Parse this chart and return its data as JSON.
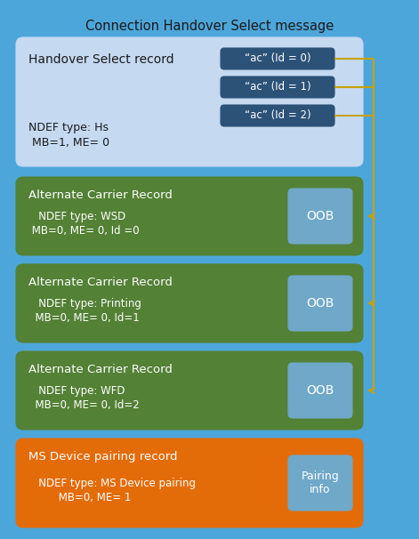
{
  "title": "Connection Handover Select message",
  "bg_outer": "#4da6d9",
  "bg_handover": "#c5d9f1",
  "bg_alt_carrier": "#538135",
  "bg_ms": "#e36c09",
  "bg_ac_label": "#2d5278",
  "bg_oob": "#6fa8c9",
  "bg_pairing": "#6fa8c9",
  "text_white": "#ffffff",
  "text_dark": "#1a1a1a",
  "arrow_color": "#c8a000",
  "title_text": "Connection Handover Select message",
  "handover_title": "Handover Select record",
  "handover_sub1": "NDEF type: Hs",
  "handover_sub2": " MB=1, ME= 0",
  "ac_labels": [
    "“ac” (Id = 0)",
    "“ac” (Id = 1)",
    "“ac” (Id = 2)"
  ],
  "carrier_records": [
    {
      "title": "Alternate Carrier Record",
      "line1": "   NDEF type: WSD",
      "line2": " MB=0, ME= 0, Id =0",
      "oob": "OOB"
    },
    {
      "title": "Alternate Carrier Record",
      "line1": "   NDEF type: Printing",
      "line2": "  MB=0, ME= 0, Id=1",
      "oob": "OOB"
    },
    {
      "title": "Alternate Carrier Record",
      "line1": "   NDEF type: WFD",
      "line2": "  MB=0, ME= 0, Id=2",
      "oob": "OOB"
    }
  ],
  "ms_record": {
    "title": "MS Device pairing record",
    "line1": "   NDEF type: MS Device pairing",
    "line2": "         MB=0, ME= 1",
    "box_label": "Pairing\ninfo"
  },
  "figw": 4.71,
  "figh": 6.06,
  "dpi": 100
}
